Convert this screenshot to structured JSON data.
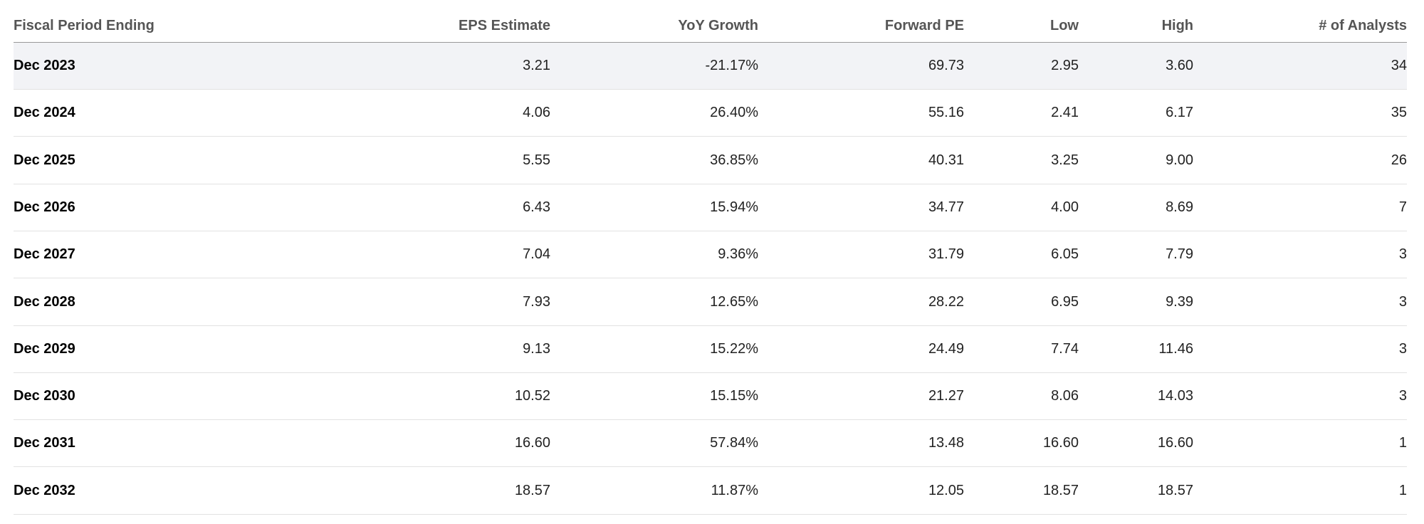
{
  "table": {
    "headers": [
      "Fiscal Period Ending",
      "EPS Estimate",
      "YoY Growth",
      "Forward PE",
      "Low",
      "High",
      "# of Analysts"
    ],
    "rows": [
      [
        "Dec 2023",
        "3.21",
        "-21.17%",
        "69.73",
        "2.95",
        "3.60",
        "34"
      ],
      [
        "Dec 2024",
        "4.06",
        "26.40%",
        "55.16",
        "2.41",
        "6.17",
        "35"
      ],
      [
        "Dec 2025",
        "5.55",
        "36.85%",
        "40.31",
        "3.25",
        "9.00",
        "26"
      ],
      [
        "Dec 2026",
        "6.43",
        "15.94%",
        "34.77",
        "4.00",
        "8.69",
        "7"
      ],
      [
        "Dec 2027",
        "7.04",
        "9.36%",
        "31.79",
        "6.05",
        "7.79",
        "3"
      ],
      [
        "Dec 2028",
        "7.93",
        "12.65%",
        "28.22",
        "6.95",
        "9.39",
        "3"
      ],
      [
        "Dec 2029",
        "9.13",
        "15.22%",
        "24.49",
        "7.74",
        "11.46",
        "3"
      ],
      [
        "Dec 2030",
        "10.52",
        "15.15%",
        "21.27",
        "8.06",
        "14.03",
        "3"
      ],
      [
        "Dec 2031",
        "16.60",
        "57.84%",
        "13.48",
        "16.60",
        "16.60",
        "1"
      ],
      [
        "Dec 2032",
        "18.57",
        "11.87%",
        "12.05",
        "18.57",
        "18.57",
        "1"
      ]
    ]
  }
}
